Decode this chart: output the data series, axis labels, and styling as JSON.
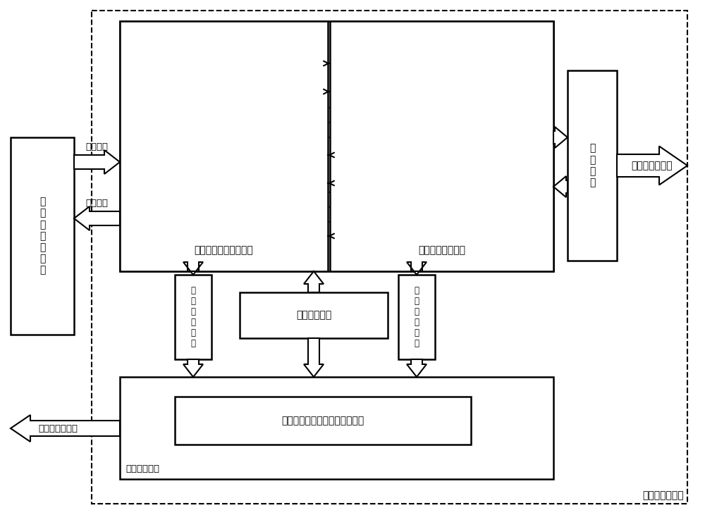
{
  "bg_color": "#ffffff",
  "fig_width": 10.0,
  "fig_height": 7.31,
  "dpi": 100,
  "title_label": "局端光收发装置",
  "labels": {
    "core_net": "核\n心\n网\n数\n据\n交\n换",
    "downlink": "下行数据",
    "uplink": "上行数据",
    "elec_domain": "电时域延时编解码模块",
    "opt_domain": "光频域编解码模块",
    "opt_circulator": "光\n环\n形\n器",
    "fiber_net": "光纤到光分配网",
    "power_mgmt": "电源管理模块",
    "comm_ctrl": "通\n信\n控\n制\n接\n口",
    "sys_mgmt": "系统管理模块",
    "controller": "时编码模块的延时和耦合控制器",
    "telecom_if": "电信管理网接口"
  }
}
